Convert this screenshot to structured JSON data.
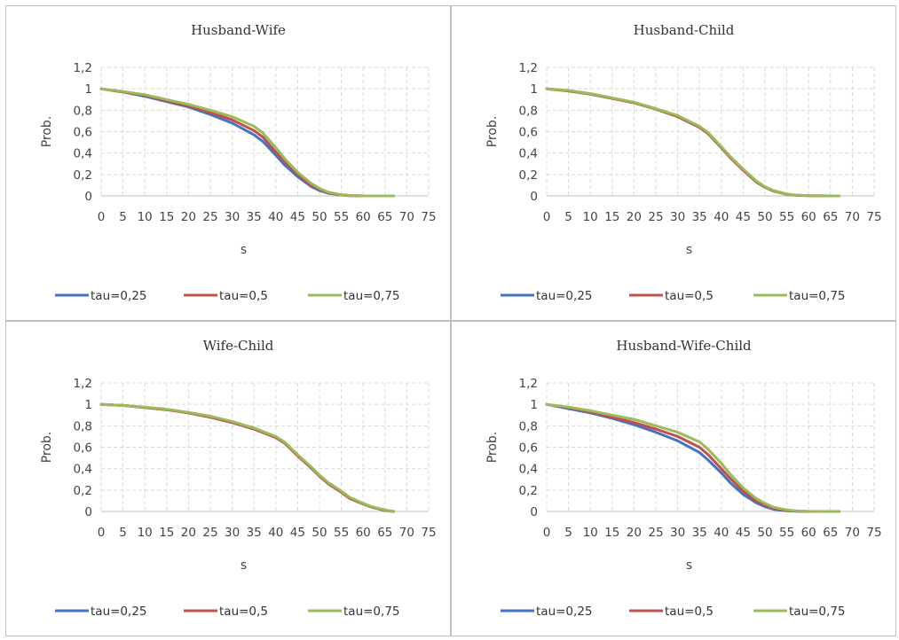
{
  "chart_data": [
    {
      "type": "line",
      "title": "Husband-Wife",
      "xlabel": "s",
      "ylabel": "Prob.",
      "xlim": [
        0,
        75
      ],
      "ylim": [
        0,
        1.2
      ],
      "xticks": [
        "0",
        "5",
        "10",
        "15",
        "20",
        "25",
        "30",
        "35",
        "40",
        "45",
        "50",
        "55",
        "60",
        "65",
        "70",
        "75"
      ],
      "yticks": [
        "0",
        "0,2",
        "0,4",
        "0,6",
        "0,8",
        "1",
        "1,2"
      ],
      "grid": "dashed",
      "legend": "bottom",
      "x": [
        0,
        5,
        10,
        15,
        20,
        25,
        30,
        35,
        37,
        40,
        42,
        45,
        48,
        50,
        52,
        55,
        57,
        60,
        65,
        67
      ],
      "series": [
        {
          "name": "tau=0,25",
          "color": "#4472c4",
          "values": [
            1,
            0.97,
            0.93,
            0.88,
            0.83,
            0.76,
            0.68,
            0.57,
            0.51,
            0.38,
            0.29,
            0.18,
            0.09,
            0.05,
            0.025,
            0.008,
            0.002,
            0,
            0,
            0
          ]
        },
        {
          "name": "tau=0,5",
          "color": "#c0504d",
          "values": [
            1,
            0.97,
            0.94,
            0.89,
            0.84,
            0.78,
            0.71,
            0.61,
            0.55,
            0.41,
            0.32,
            0.2,
            0.1,
            0.06,
            0.03,
            0.01,
            0.003,
            0,
            0,
            0
          ]
        },
        {
          "name": "tau=0,75",
          "color": "#9bbb59",
          "values": [
            1,
            0.975,
            0.945,
            0.9,
            0.855,
            0.8,
            0.74,
            0.65,
            0.59,
            0.45,
            0.35,
            0.22,
            0.12,
            0.07,
            0.035,
            0.012,
            0.004,
            0,
            0,
            0
          ]
        }
      ]
    },
    {
      "type": "line",
      "title": "Husband-Child",
      "xlabel": "s",
      "ylabel": "Prob.",
      "xlim": [
        0,
        75
      ],
      "ylim": [
        0,
        1.2
      ],
      "xticks": [
        "0",
        "5",
        "10",
        "15",
        "20",
        "25",
        "30",
        "35",
        "40",
        "45",
        "50",
        "55",
        "60",
        "65",
        "70",
        "75"
      ],
      "yticks": [
        "0",
        "0,2",
        "0,4",
        "0,6",
        "0,8",
        "1",
        "1,2"
      ],
      "grid": "dashed",
      "legend": "bottom",
      "x": [
        0,
        5,
        10,
        15,
        20,
        25,
        30,
        35,
        37,
        40,
        42,
        45,
        48,
        50,
        52,
        55,
        57,
        60,
        65,
        67
      ],
      "series": [
        {
          "name": "tau=0,25",
          "color": "#4472c4",
          "values": [
            1,
            0.98,
            0.95,
            0.91,
            0.87,
            0.81,
            0.74,
            0.64,
            0.58,
            0.45,
            0.36,
            0.24,
            0.13,
            0.08,
            0.045,
            0.015,
            0.007,
            0.002,
            0,
            0
          ]
        },
        {
          "name": "tau=0,5",
          "color": "#c0504d",
          "values": [
            1,
            0.98,
            0.95,
            0.91,
            0.87,
            0.81,
            0.74,
            0.64,
            0.58,
            0.45,
            0.36,
            0.24,
            0.13,
            0.08,
            0.045,
            0.015,
            0.007,
            0.002,
            0,
            0
          ]
        },
        {
          "name": "tau=0,75",
          "color": "#9bbb59",
          "values": [
            1,
            0.985,
            0.955,
            0.915,
            0.875,
            0.815,
            0.75,
            0.65,
            0.59,
            0.46,
            0.37,
            0.25,
            0.14,
            0.085,
            0.05,
            0.018,
            0.008,
            0.002,
            0,
            0
          ]
        }
      ]
    },
    {
      "type": "line",
      "title": "Wife-Child",
      "xlabel": "s",
      "ylabel": "Prob.",
      "xlim": [
        0,
        75
      ],
      "ylim": [
        0,
        1.2
      ],
      "xticks": [
        "0",
        "5",
        "10",
        "15",
        "20",
        "25",
        "30",
        "35",
        "40",
        "45",
        "50",
        "55",
        "60",
        "65",
        "70",
        "75"
      ],
      "yticks": [
        "0",
        "0,2",
        "0,4",
        "0,6",
        "0,8",
        "1",
        "1,2"
      ],
      "grid": "dashed",
      "legend": "bottom",
      "x": [
        0,
        5,
        10,
        15,
        20,
        25,
        30,
        35,
        40,
        42,
        45,
        48,
        50,
        52,
        55,
        57,
        60,
        62,
        65,
        67
      ],
      "series": [
        {
          "name": "tau=0,25",
          "color": "#4472c4",
          "values": [
            1,
            0.99,
            0.97,
            0.95,
            0.92,
            0.88,
            0.83,
            0.77,
            0.69,
            0.64,
            0.52,
            0.41,
            0.33,
            0.26,
            0.18,
            0.12,
            0.07,
            0.04,
            0.01,
            0
          ]
        },
        {
          "name": "tau=0,5",
          "color": "#c0504d",
          "values": [
            1,
            0.99,
            0.97,
            0.95,
            0.92,
            0.88,
            0.83,
            0.77,
            0.69,
            0.64,
            0.52,
            0.41,
            0.33,
            0.26,
            0.18,
            0.12,
            0.07,
            0.04,
            0.01,
            0
          ]
        },
        {
          "name": "tau=0,75",
          "color": "#9bbb59",
          "values": [
            1,
            0.99,
            0.975,
            0.955,
            0.925,
            0.89,
            0.84,
            0.78,
            0.7,
            0.65,
            0.53,
            0.42,
            0.34,
            0.27,
            0.19,
            0.13,
            0.075,
            0.045,
            0.015,
            0
          ]
        }
      ]
    },
    {
      "type": "line",
      "title": "Husband-Wife-Child",
      "xlabel": "s",
      "ylabel": "Prob.",
      "xlim": [
        0,
        75
      ],
      "ylim": [
        0,
        1.2
      ],
      "xticks": [
        "0",
        "5",
        "10",
        "15",
        "20",
        "25",
        "30",
        "35",
        "40",
        "45",
        "50",
        "55",
        "60",
        "65",
        "70",
        "75"
      ],
      "yticks": [
        "0",
        "0,2",
        "0,4",
        "0,6",
        "0,8",
        "1",
        "1,2"
      ],
      "grid": "dashed",
      "legend": "bottom",
      "x": [
        0,
        5,
        10,
        15,
        20,
        25,
        30,
        35,
        37,
        40,
        42,
        45,
        48,
        50,
        52,
        55,
        57,
        60,
        65,
        67
      ],
      "series": [
        {
          "name": "tau=0,25",
          "color": "#4472c4",
          "values": [
            1,
            0.96,
            0.92,
            0.87,
            0.81,
            0.74,
            0.66,
            0.55,
            0.48,
            0.36,
            0.27,
            0.16,
            0.08,
            0.045,
            0.02,
            0.006,
            0.002,
            0,
            0,
            0
          ]
        },
        {
          "name": "tau=0,5",
          "color": "#c0504d",
          "values": [
            1,
            0.97,
            0.93,
            0.88,
            0.83,
            0.77,
            0.7,
            0.6,
            0.53,
            0.4,
            0.31,
            0.19,
            0.1,
            0.06,
            0.03,
            0.01,
            0.004,
            0,
            0,
            0
          ]
        },
        {
          "name": "tau=0,75",
          "color": "#9bbb59",
          "values": [
            1,
            0.975,
            0.94,
            0.9,
            0.86,
            0.8,
            0.74,
            0.65,
            0.58,
            0.45,
            0.35,
            0.22,
            0.12,
            0.075,
            0.04,
            0.015,
            0.006,
            0.001,
            0,
            0
          ]
        }
      ]
    }
  ]
}
